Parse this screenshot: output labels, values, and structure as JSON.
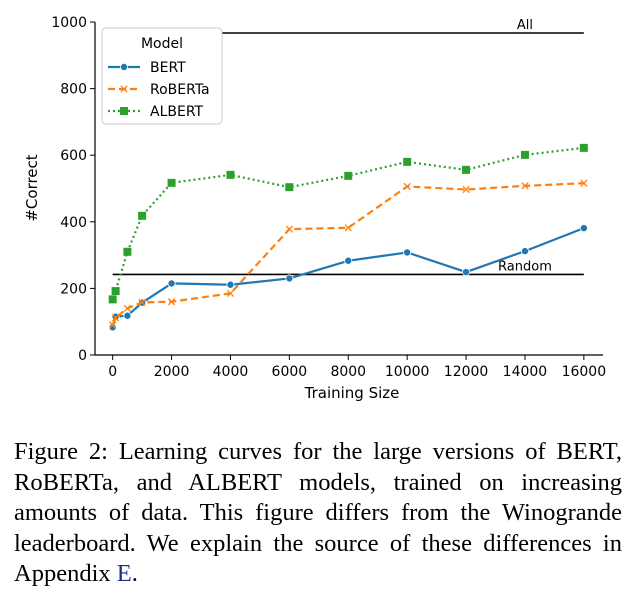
{
  "chart_data": {
    "type": "line",
    "xlabel": "Training Size",
    "ylabel": "#Correct",
    "xlim": [
      -600,
      16650
    ],
    "ylim": [
      0,
      1000
    ],
    "xticks": [
      "0",
      "2000",
      "4000",
      "6000",
      "8000",
      "10000",
      "12000",
      "14000",
      "16000"
    ],
    "xtick_values": [
      0,
      2000,
      4000,
      6000,
      8000,
      10000,
      12000,
      14000,
      16000
    ],
    "yticks": [
      "0",
      "200",
      "400",
      "600",
      "800",
      "1000"
    ],
    "ytick_values": [
      0,
      200,
      400,
      600,
      800,
      1000
    ],
    "legend": {
      "title": "Model",
      "position": "top-left"
    },
    "series": [
      {
        "name": "BERT",
        "color": "#1f77b4",
        "marker": "circle",
        "dash": "solid",
        "x": [
          0,
          100,
          500,
          1000,
          2000,
          4000,
          6000,
          8000,
          10000,
          12000,
          14000,
          16000
        ],
        "y": [
          83,
          115,
          118,
          157,
          215,
          211,
          230,
          283,
          308,
          249,
          312,
          381
        ]
      },
      {
        "name": "RoBERTa",
        "color": "#ff7f0e",
        "marker": "x",
        "dash": "dashed",
        "x": [
          0,
          100,
          500,
          1000,
          2000,
          4000,
          6000,
          8000,
          10000,
          12000,
          14000,
          16000
        ],
        "y": [
          90,
          112,
          140,
          158,
          160,
          185,
          378,
          382,
          506,
          497,
          508,
          516
        ]
      },
      {
        "name": "ALBERT",
        "color": "#2ca02c",
        "marker": "square",
        "dash": "dotted",
        "x": [
          0,
          100,
          500,
          1000,
          2000,
          4000,
          6000,
          8000,
          10000,
          12000,
          14000,
          16000
        ],
        "y": [
          167,
          192,
          310,
          418,
          517,
          541,
          504,
          538,
          580,
          556,
          601,
          622
        ]
      }
    ],
    "reference_lines": [
      {
        "label": "All",
        "y": 967,
        "x_start": 3700,
        "x_end": 16000
      },
      {
        "label": "Random",
        "y": 242,
        "x_start": 0,
        "x_end": 16000
      }
    ]
  },
  "caption": {
    "text_before": "Figure 2:  Learning curves for the large versions of BERT, RoBERTa, and ALBERT models, trained on increasing amounts of data.  This figure differs from the Winogrande leaderboard. We explain the source of these differences in Appendix ",
    "ref": "E",
    "text_after": "."
  }
}
